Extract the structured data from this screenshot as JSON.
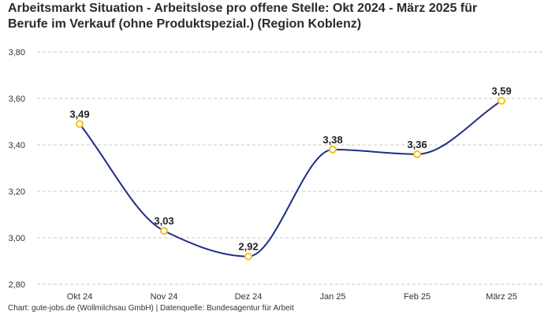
{
  "title_line1": "Arbeitsmarkt Situation - Arbeitslose pro offene Stelle: Okt 2024 - März 2025 für",
  "title_line2": "Berufe im Verkauf (ohne Produktspezial.) (Region Koblenz)",
  "footer": "Chart: gute-jobs.de (Wollmilchsau GmbH) | Datenquelle: Bundesagentur für Arbeit",
  "colors": {
    "line": "#1f2d86",
    "marker_stroke": "#f0c419",
    "marker_fill": "#ffffff",
    "grid": "#c8c8c8"
  },
  "chart_data": {
    "type": "line",
    "categories": [
      "Okt 24",
      "Nov 24",
      "Dez 24",
      "Jan 25",
      "Feb 25",
      "März 25"
    ],
    "values": [
      3.49,
      3.03,
      2.92,
      3.38,
      3.36,
      3.59
    ],
    "data_labels": [
      "3,49",
      "3,03",
      "2,92",
      "3,38",
      "3,36",
      "3,59"
    ],
    "yticks": [
      2.8,
      3.0,
      3.2,
      3.4,
      3.6,
      3.8
    ],
    "ytick_labels": [
      "2,80",
      "3,00",
      "3,20",
      "3,40",
      "3,60",
      "3,80"
    ],
    "ylim": [
      2.8,
      3.8
    ],
    "grid": true,
    "smooth": true
  }
}
